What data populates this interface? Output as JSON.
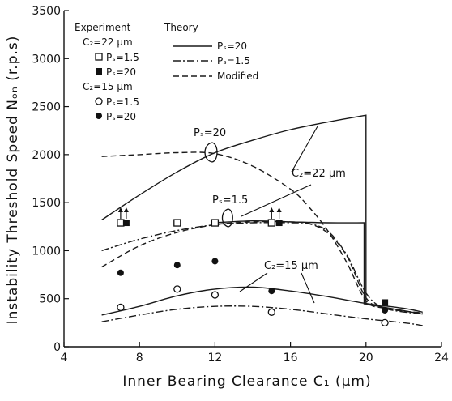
{
  "chart_data": {
    "type": "scatter",
    "xlabel": "Inner Bearing Clearance C₁ (μm)",
    "ylabel": "Instability Threshold Speed Nₒₙ (r.p.s)",
    "xlim": [
      4,
      24
    ],
    "ylim": [
      0,
      3500
    ],
    "xticks": [
      4,
      8,
      12,
      16,
      20,
      24
    ],
    "yticks": [
      0,
      500,
      1000,
      1500,
      2000,
      2500,
      3000,
      3500
    ],
    "legend": {
      "experiment_header": "Experiment",
      "theory_header": "Theory",
      "c2_22": "C₂=22 μm",
      "c2_15": "C₂=15 μm",
      "ps15": "Pₛ=1.5",
      "ps20": "Pₛ=20",
      "theory_ps20": "Pₛ=20",
      "theory_ps15": "Pₛ=1.5",
      "theory_modified": "Modified"
    },
    "annotations": {
      "ps20": "Pₛ=20",
      "ps15": "Pₛ=1.5",
      "c2_22": "C₂=22 μm",
      "c2_15": "C₂=15 μm"
    },
    "series": [
      {
        "key": "th_22_20",
        "style": "solid",
        "x": [
          6,
          8,
          10,
          12,
          14,
          16,
          18,
          20,
          20,
          21,
          23
        ],
        "y": [
          1320,
          1580,
          1820,
          2020,
          2150,
          2260,
          2340,
          2410,
          440,
          410,
          340
        ]
      },
      {
        "key": "th_22_15",
        "style": "dashdot",
        "x": [
          6,
          8,
          10,
          12,
          14,
          16,
          17,
          18,
          19,
          20,
          21,
          23
        ],
        "y": [
          1000,
          1120,
          1210,
          1270,
          1290,
          1290,
          1280,
          1200,
          950,
          560,
          400,
          340
        ]
      },
      {
        "key": "mod_22_20",
        "style": "dashed",
        "x": [
          6,
          8,
          10,
          12,
          14,
          16,
          17,
          18,
          19,
          20,
          21,
          23
        ],
        "y": [
          1980,
          2000,
          2020,
          2010,
          1880,
          1640,
          1450,
          1200,
          870,
          480,
          400,
          350
        ]
      },
      {
        "key": "mod_22_15",
        "style": "dashed",
        "x": [
          6,
          8,
          10,
          12,
          14,
          16,
          17,
          18,
          19,
          20,
          21,
          23
        ],
        "y": [
          830,
          1050,
          1190,
          1270,
          1300,
          1300,
          1280,
          1180,
          940,
          510,
          400,
          350
        ]
      },
      {
        "key": "th_22_15_flat",
        "style": "solid",
        "x": [
          12,
          14,
          16,
          18,
          19.9,
          19.9
        ],
        "y": [
          1290,
          1310,
          1300,
          1290,
          1290,
          440
        ]
      },
      {
        "key": "th_15_20",
        "style": "solid",
        "x": [
          6,
          8,
          10,
          12,
          14,
          16,
          18,
          20,
          22,
          23
        ],
        "y": [
          330,
          420,
          530,
          600,
          620,
          580,
          520,
          450,
          400,
          360
        ]
      },
      {
        "key": "th_15_15",
        "style": "dashdot",
        "x": [
          6,
          8,
          10,
          12,
          14,
          16,
          18,
          20,
          22,
          23
        ],
        "y": [
          260,
          330,
          390,
          420,
          420,
          390,
          340,
          290,
          250,
          220
        ]
      }
    ],
    "points": [
      {
        "group": "C2=22 Ps=1.5",
        "marker": "open-square",
        "x": [
          7,
          10,
          12,
          15
        ],
        "y": [
          1290,
          1290,
          1290,
          1290
        ],
        "arrow": [
          true,
          false,
          false,
          true
        ]
      },
      {
        "group": "C2=22 Ps=20",
        "marker": "filled-square",
        "x": [
          7.3,
          15.4,
          21
        ],
        "y": [
          1290,
          1290,
          460
        ],
        "arrow": [
          true,
          true,
          false
        ]
      },
      {
        "group": "C2=15 Ps=1.5",
        "marker": "open-circle",
        "x": [
          7,
          10,
          12,
          15,
          21
        ],
        "y": [
          410,
          600,
          540,
          360,
          250
        ],
        "arrow": [
          false,
          false,
          false,
          false,
          false
        ]
      },
      {
        "group": "C2=15 Ps=20",
        "marker": "filled-circle",
        "x": [
          7,
          10,
          12,
          15,
          21
        ],
        "y": [
          770,
          850,
          890,
          580,
          380
        ],
        "arrow": [
          false,
          false,
          false,
          false,
          false
        ]
      }
    ]
  }
}
